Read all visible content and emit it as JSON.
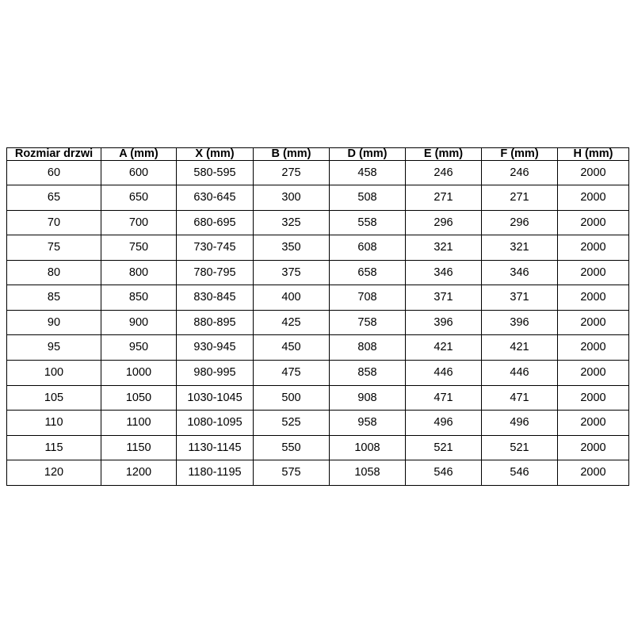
{
  "table": {
    "name": "door-size-dimensions-table",
    "columns": [
      "Rozmiar drzwi",
      "A (mm)",
      "X (mm)",
      "B (mm)",
      "D (mm)",
      "E (mm)",
      "F (mm)",
      "H (mm)"
    ],
    "rows": [
      [
        "60",
        "600",
        "580-595",
        "275",
        "458",
        "246",
        "246",
        "2000"
      ],
      [
        "65",
        "650",
        "630-645",
        "300",
        "508",
        "271",
        "271",
        "2000"
      ],
      [
        "70",
        "700",
        "680-695",
        "325",
        "558",
        "296",
        "296",
        "2000"
      ],
      [
        "75",
        "750",
        "730-745",
        "350",
        "608",
        "321",
        "321",
        "2000"
      ],
      [
        "80",
        "800",
        "780-795",
        "375",
        "658",
        "346",
        "346",
        "2000"
      ],
      [
        "85",
        "850",
        "830-845",
        "400",
        "708",
        "371",
        "371",
        "2000"
      ],
      [
        "90",
        "900",
        "880-895",
        "425",
        "758",
        "396",
        "396",
        "2000"
      ],
      [
        "95",
        "950",
        "930-945",
        "450",
        "808",
        "421",
        "421",
        "2000"
      ],
      [
        "100",
        "1000",
        "980-995",
        "475",
        "858",
        "446",
        "446",
        "2000"
      ],
      [
        "105",
        "1050",
        "1030-1045",
        "500",
        "908",
        "471",
        "471",
        "2000"
      ],
      [
        "110",
        "1100",
        "1080-1095",
        "525",
        "958",
        "496",
        "496",
        "2000"
      ],
      [
        "115",
        "1150",
        "1130-1145",
        "550",
        "1008",
        "521",
        "521",
        "2000"
      ],
      [
        "120",
        "1200",
        "1180-1195",
        "575",
        "1058",
        "546",
        "546",
        "2000"
      ]
    ],
    "colors": {
      "border": "#000000",
      "text": "#000000",
      "background": "#ffffff"
    }
  }
}
